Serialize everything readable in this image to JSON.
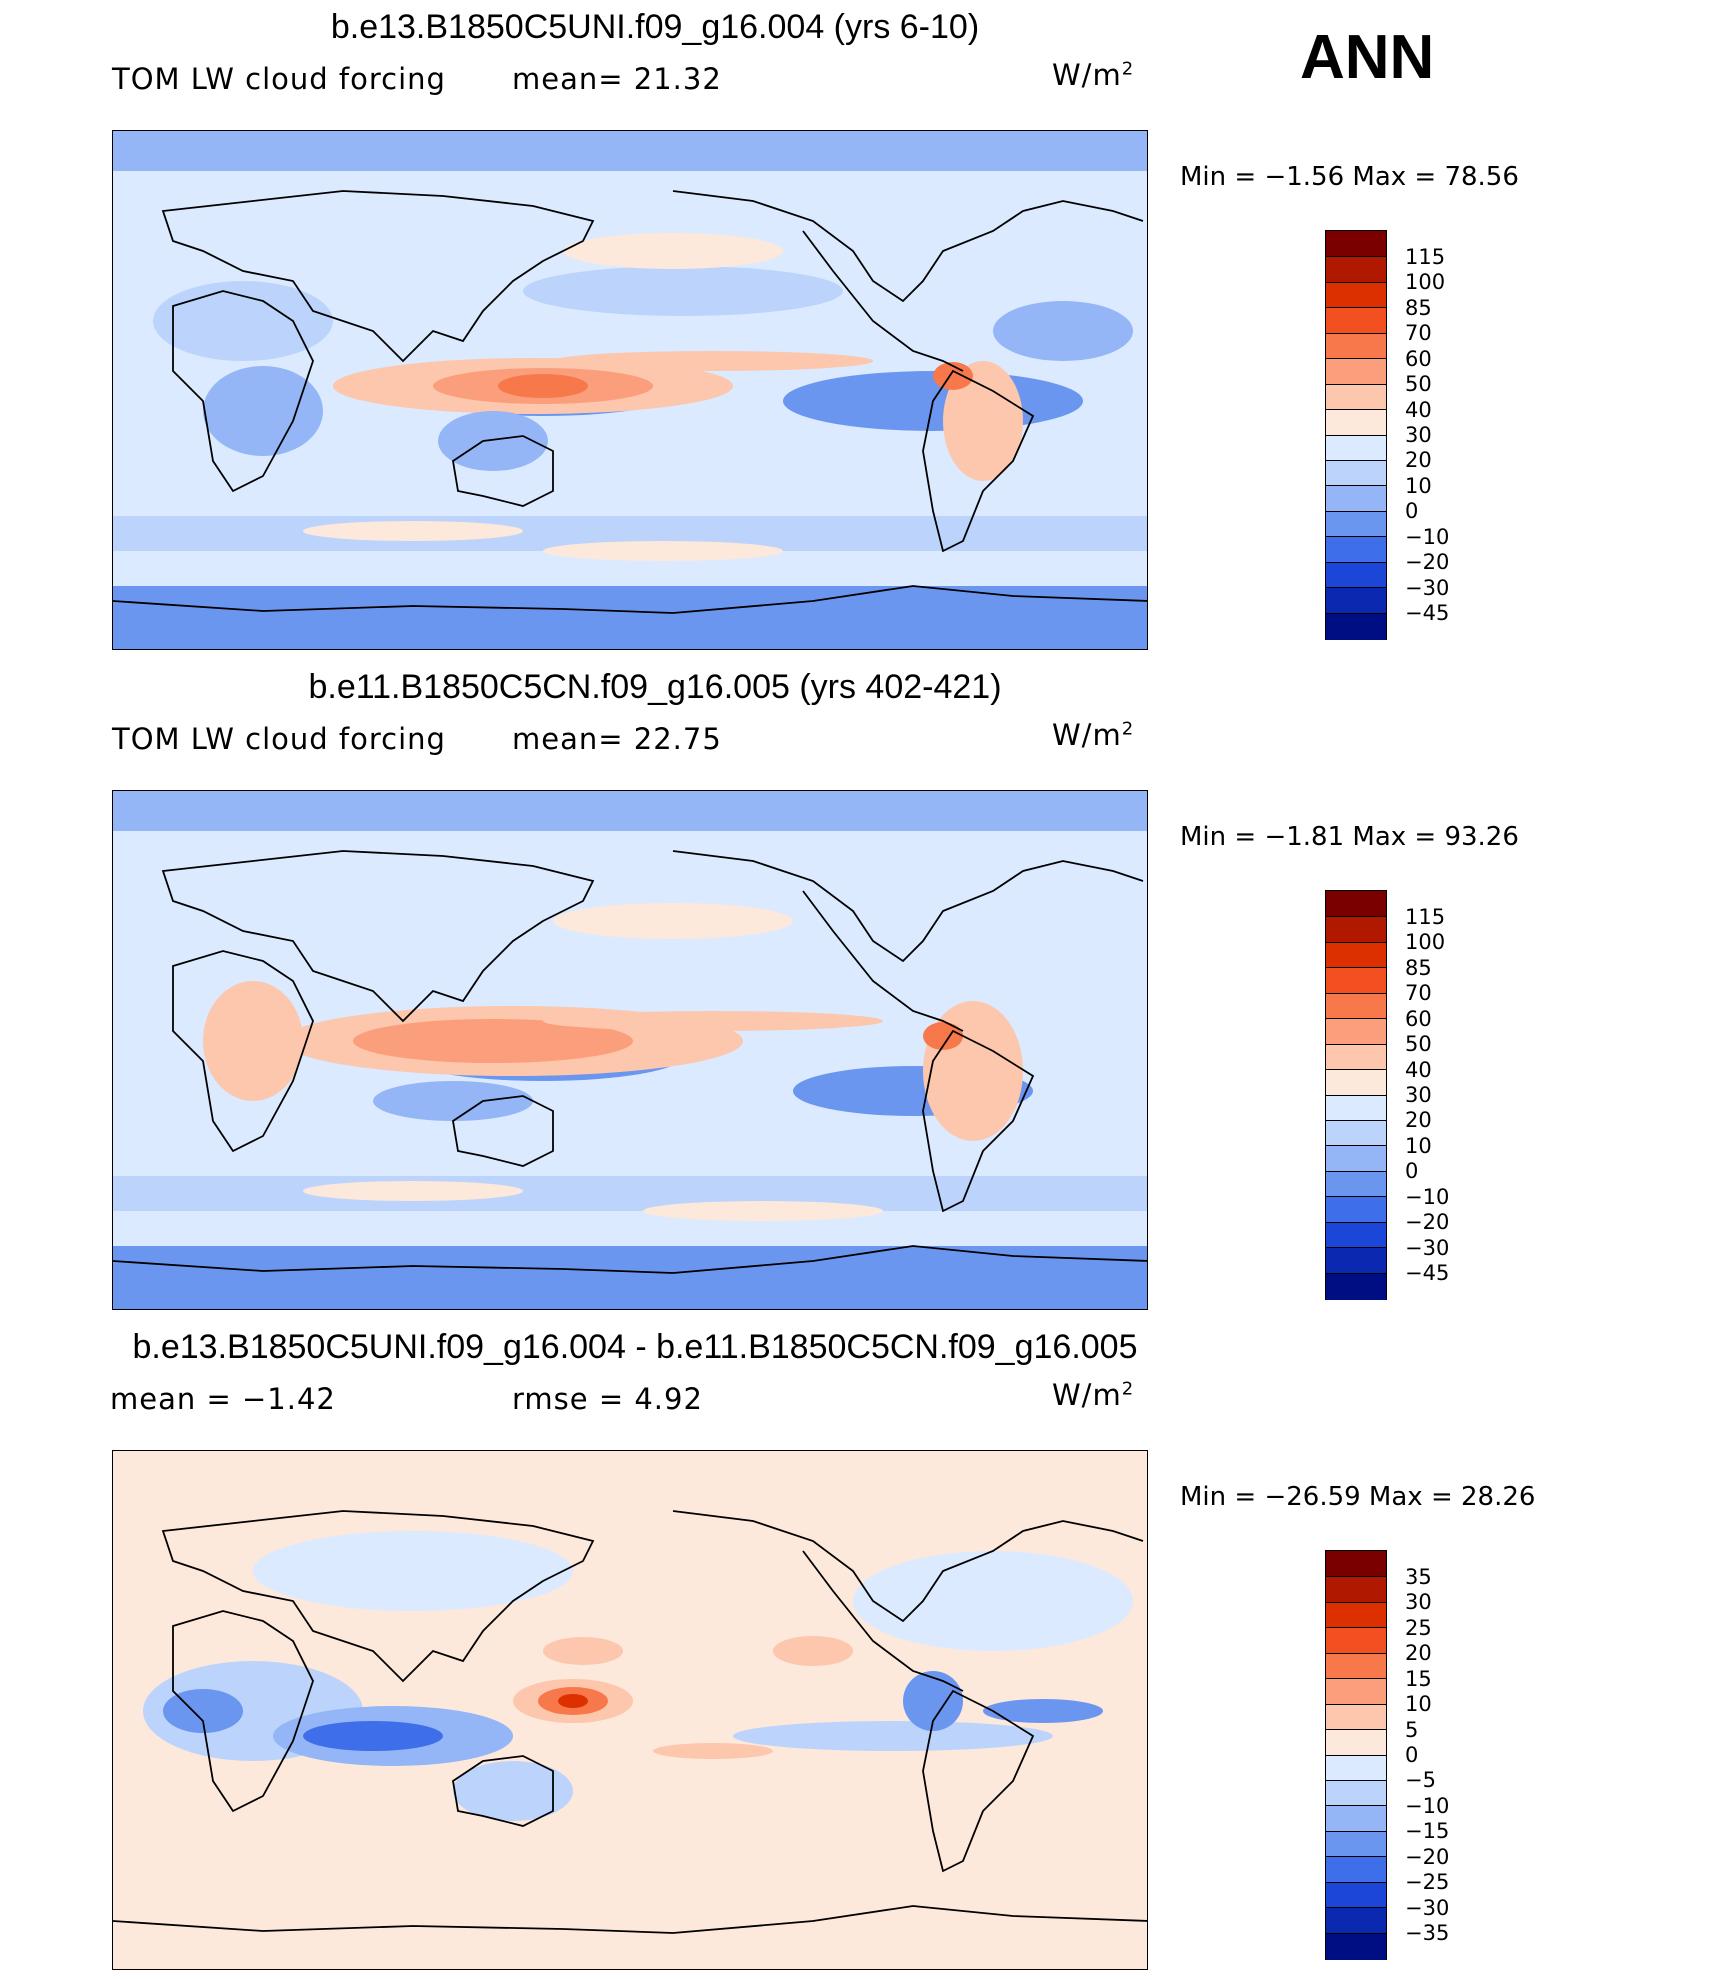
{
  "season": "ANN",
  "panels": [
    {
      "title": "b.e13.B1850C5UNI.f09_g16.004 (yrs 6-10)",
      "variable": "TOM LW cloud forcing",
      "mean": "mean=  21.32",
      "rmse": "",
      "units_base": "W/m",
      "units_exp": "2",
      "minmax": "Min =  −1.56 Max =  78.56",
      "levels": [
        "115",
        "100",
        "85",
        "70",
        "60",
        "50",
        "40",
        "30",
        "20",
        "10",
        "0",
        "−10",
        "−20",
        "−30",
        "−45"
      ]
    },
    {
      "title": "b.e11.B1850C5CN.f09_g16.005 (yrs 402-421)",
      "variable": "TOM LW cloud forcing",
      "mean": "mean=  22.75",
      "rmse": "",
      "units_base": "W/m",
      "units_exp": "2",
      "minmax": "Min =  −1.81 Max =  93.26",
      "levels": [
        "115",
        "100",
        "85",
        "70",
        "60",
        "50",
        "40",
        "30",
        "20",
        "10",
        "0",
        "−10",
        "−20",
        "−30",
        "−45"
      ]
    },
    {
      "title": "b.e13.B1850C5UNI.f09_g16.004 - b.e11.B1850C5CN.f09_g16.005",
      "variable": "",
      "mean": "mean =  −1.42",
      "rmse": "rmse =   4.92",
      "units_base": "W/m",
      "units_exp": "2",
      "minmax": "Min = −26.59 Max =  28.26",
      "levels": [
        "35",
        "30",
        "25",
        "20",
        "15",
        "10",
        "5",
        "0",
        "−5",
        "−10",
        "−15",
        "−20",
        "−25",
        "−30",
        "−35"
      ]
    }
  ],
  "colors": {
    "full_palette": [
      "#7a0000",
      "#b01800",
      "#dc3000",
      "#f25020",
      "#f7784a",
      "#fb9e7c",
      "#fcc7ac",
      "#fde8dc",
      "#dbeaff",
      "#bcd4fb",
      "#94b6f6",
      "#6b96f0",
      "#3f6eea",
      "#1c46d8",
      "#0a28b0",
      "#000e84"
    ],
    "diff_palette": [
      "#7a0000",
      "#b01800",
      "#dc3000",
      "#f25020",
      "#f7784a",
      "#fb9e7c",
      "#fcc7ac",
      "#fde8dc",
      "#dbeaff",
      "#bcd4fb",
      "#94b6f6",
      "#6b96f0",
      "#3f6eea",
      "#1c46d8",
      "#0a28b0",
      "#000e84"
    ]
  }
}
